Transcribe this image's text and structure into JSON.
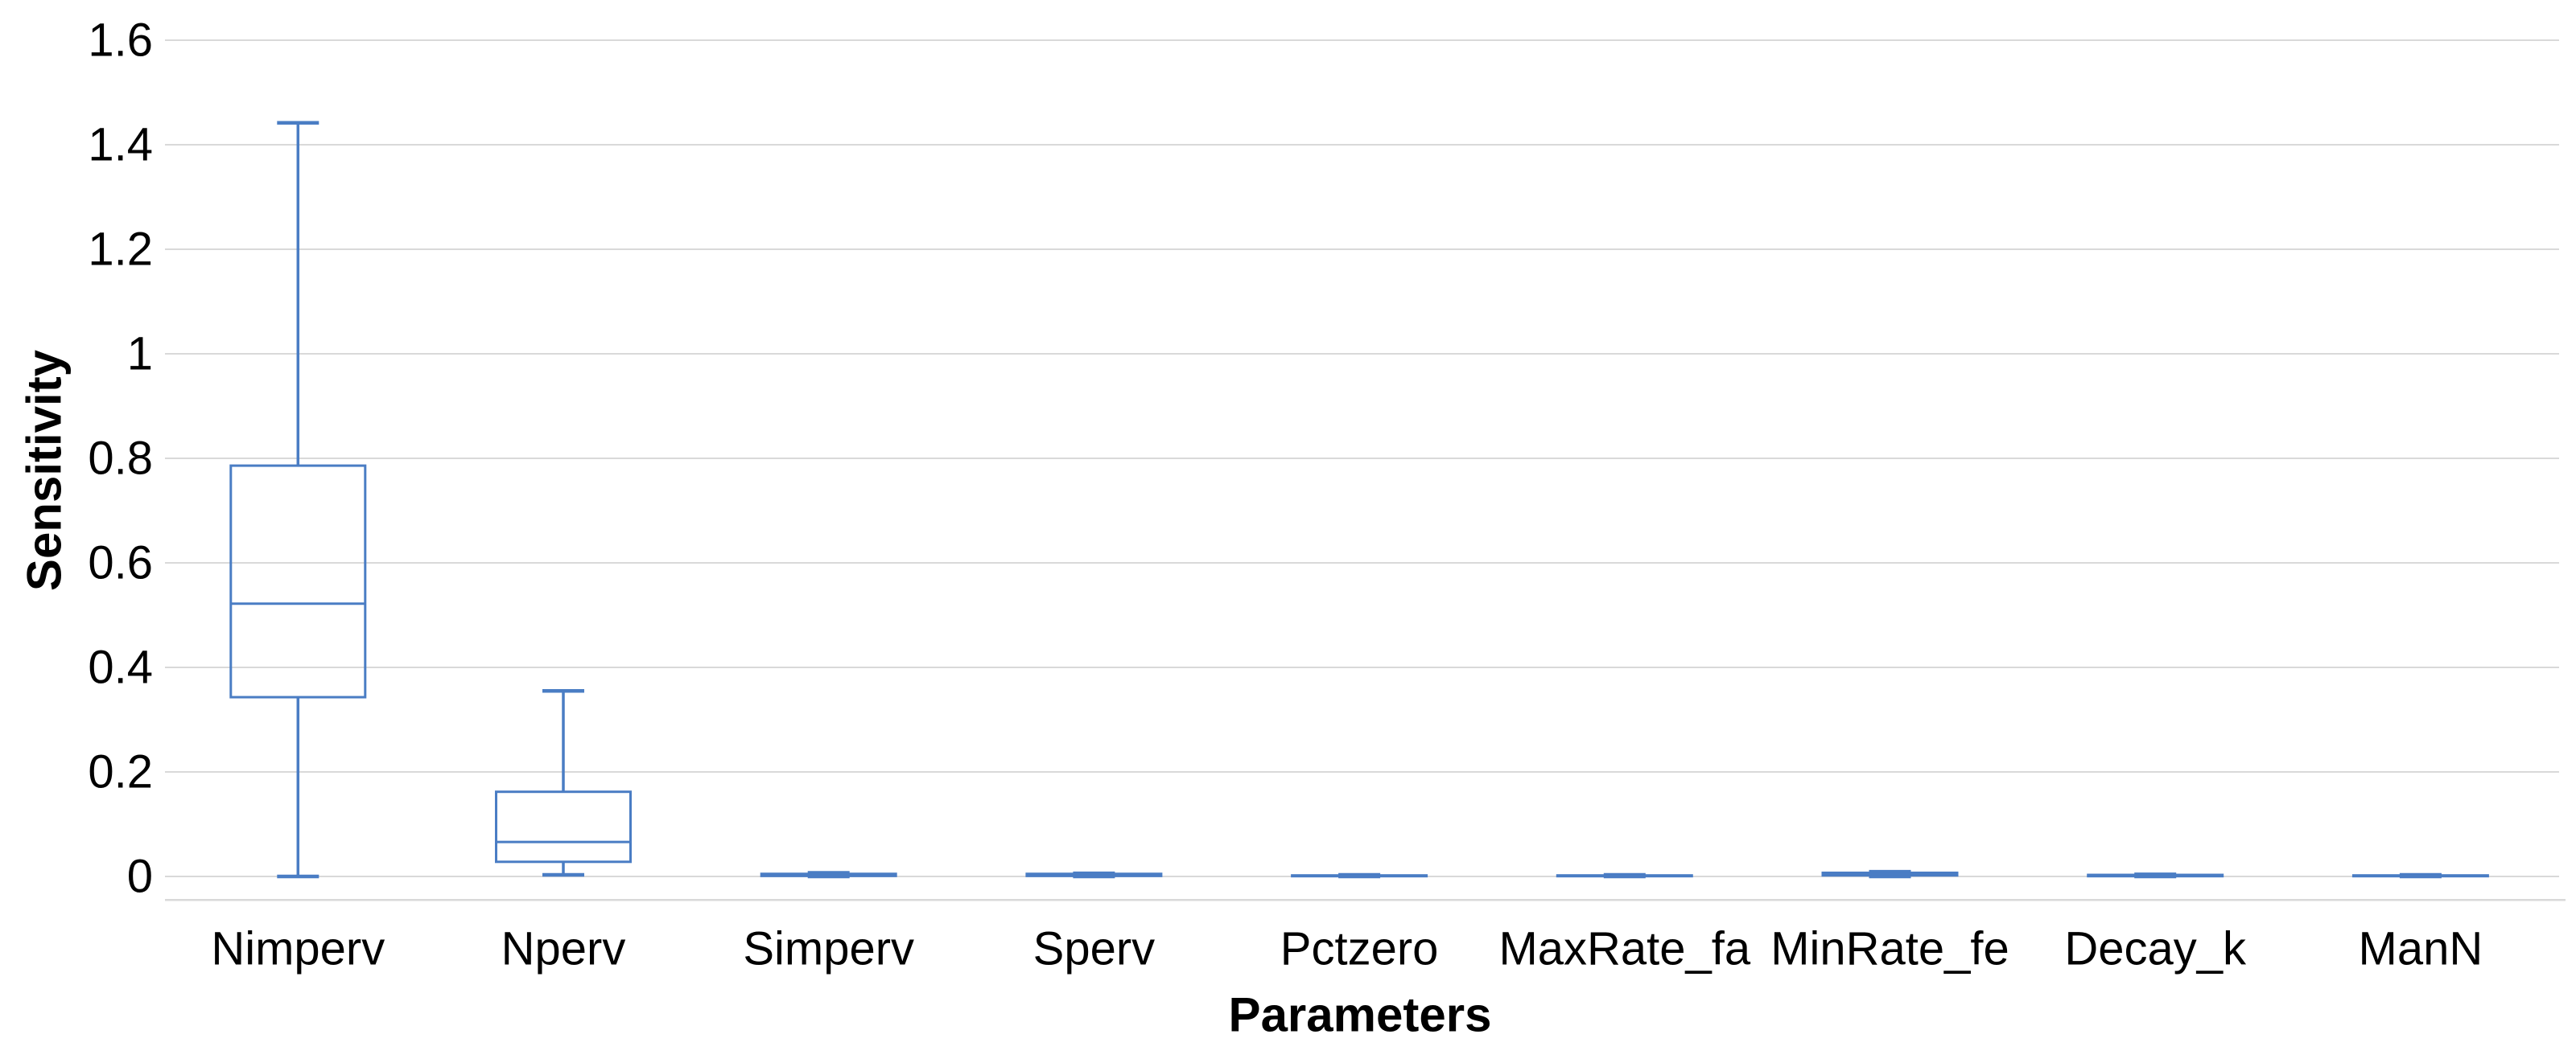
{
  "chart_data": {
    "type": "box",
    "title": "",
    "xlabel": "Parameters",
    "ylabel": "Sensitivity",
    "categories": [
      "Nimperv",
      "Nperv",
      "Simperv",
      "Sperv",
      "Pctzero",
      "MaxRate_fa",
      "MinRate_fe",
      "Decay_k",
      "ManN"
    ],
    "series": [
      {
        "name": "Nimperv",
        "min": 0.0,
        "q1": 0.343,
        "median": 0.522,
        "q3": 0.786,
        "max": 1.442
      },
      {
        "name": "Nperv",
        "min": 0.003,
        "q1": 0.028,
        "median": 0.066,
        "q3": 0.162,
        "max": 0.355
      },
      {
        "name": "Simperv",
        "min": 0.0,
        "q1": 0.001,
        "median": 0.003,
        "q3": 0.005,
        "max": 0.007
      },
      {
        "name": "Sperv",
        "min": 0.0,
        "q1": 0.001,
        "median": 0.003,
        "q3": 0.005,
        "max": 0.006
      },
      {
        "name": "Pctzero",
        "min": 0.0,
        "q1": 0.0005,
        "median": 0.001,
        "q3": 0.002,
        "max": 0.003
      },
      {
        "name": "MaxRate_fa",
        "min": 0.0,
        "q1": 0.0005,
        "median": 0.001,
        "q3": 0.002,
        "max": 0.003
      },
      {
        "name": "MinRate_fe",
        "min": 0.0,
        "q1": 0.002,
        "median": 0.004,
        "q3": 0.007,
        "max": 0.009
      },
      {
        "name": "Decay_k",
        "min": 0.0,
        "q1": 0.0005,
        "median": 0.0015,
        "q3": 0.003,
        "max": 0.004
      },
      {
        "name": "ManN",
        "min": 0.0,
        "q1": 0.0005,
        "median": 0.001,
        "q3": 0.002,
        "max": 0.003
      }
    ],
    "yticks": [
      0,
      0.2,
      0.4,
      0.6,
      0.8,
      1,
      1.2,
      1.4,
      1.6
    ],
    "ytick_labels": [
      "0",
      "0.2",
      "0.4",
      "0.6",
      "0.8",
      "1",
      "1.2",
      "1.4",
      "1.6"
    ],
    "ylim": [
      -0.045,
      1.645
    ],
    "grid": true,
    "legend": false,
    "colors": {
      "box_stroke": "#4a7dc4",
      "gridline": "#d9d9d9",
      "text": "#000000",
      "background": "#ffffff"
    }
  }
}
